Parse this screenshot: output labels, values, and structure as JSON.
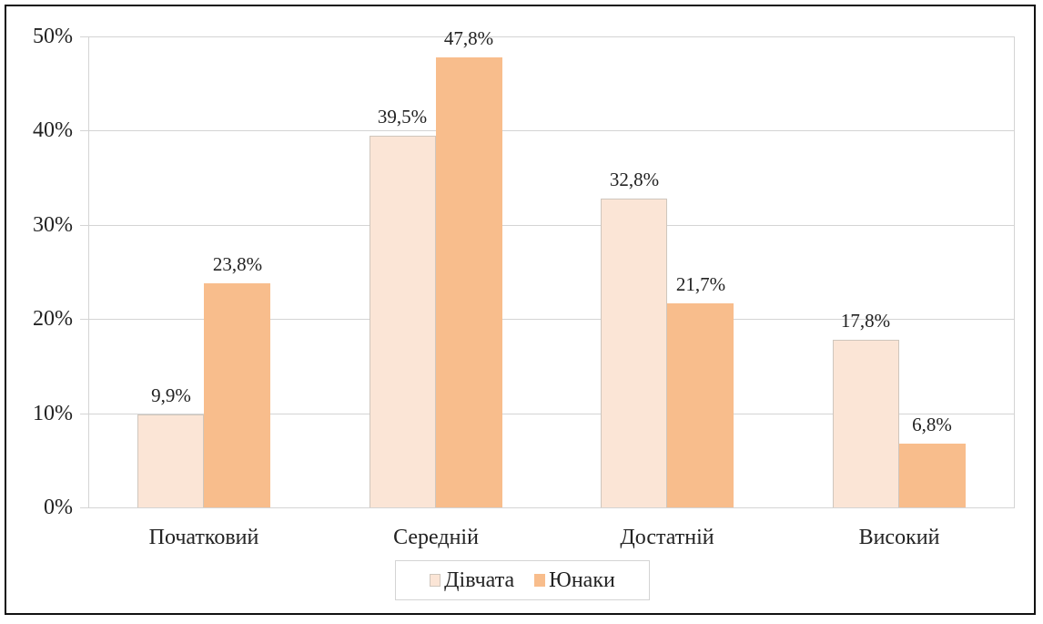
{
  "chart_data": {
    "type": "bar",
    "title": "",
    "xlabel": "",
    "ylabel": "",
    "categories": [
      "Початковий",
      "Середній",
      "Достатній",
      "Високий"
    ],
    "series": [
      {
        "name": "Дівчата",
        "values": [
          9.9,
          39.5,
          32.8,
          17.8
        ],
        "labels": [
          "9,9%",
          "39,5%",
          "32,8%",
          "17,8%"
        ],
        "color": "#fbe5d6"
      },
      {
        "name": "Юнаки",
        "values": [
          23.8,
          47.8,
          21.7,
          6.8
        ],
        "labels": [
          "23,8%",
          "47,8%",
          "21,7%",
          "6,8%"
        ],
        "color": "#f8bd8c"
      }
    ],
    "ylim": [
      0,
      50
    ],
    "yticks": [
      "0%",
      "10%",
      "20%",
      "30%",
      "40%",
      "50%"
    ],
    "grid": true,
    "legend_position": "bottom"
  }
}
